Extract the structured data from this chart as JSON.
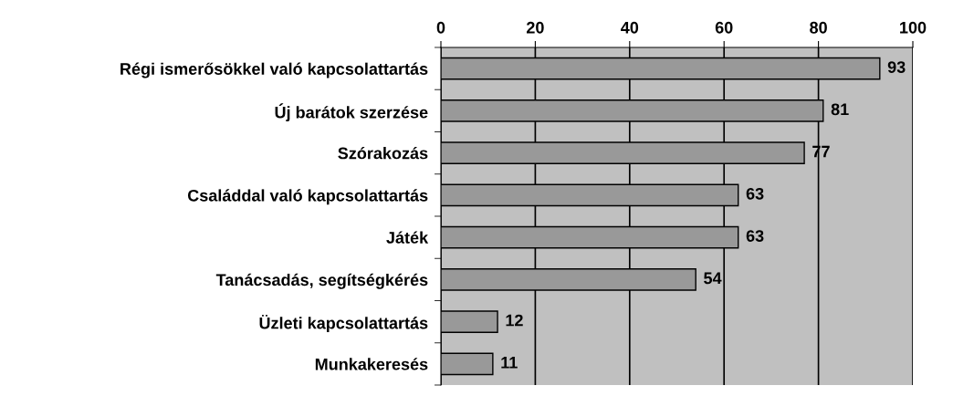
{
  "chart_data": {
    "type": "bar",
    "orientation": "horizontal",
    "categories": [
      "Régi ismerősökkel való kapcsolattartás",
      "Új barátok szerzése",
      "Szórakozás",
      "Családdal való kapcsolattartás",
      "Játék",
      "Tanácsadás, segítségkérés",
      "Üzleti kapcsolattartás",
      "Munkakeresés"
    ],
    "values": [
      93,
      81,
      77,
      63,
      63,
      54,
      12,
      11
    ],
    "color": "#999999",
    "xlim": [
      0,
      100
    ],
    "xticks": [
      0,
      20,
      40,
      60,
      80,
      100
    ],
    "grid": "x",
    "data_labels": true
  }
}
